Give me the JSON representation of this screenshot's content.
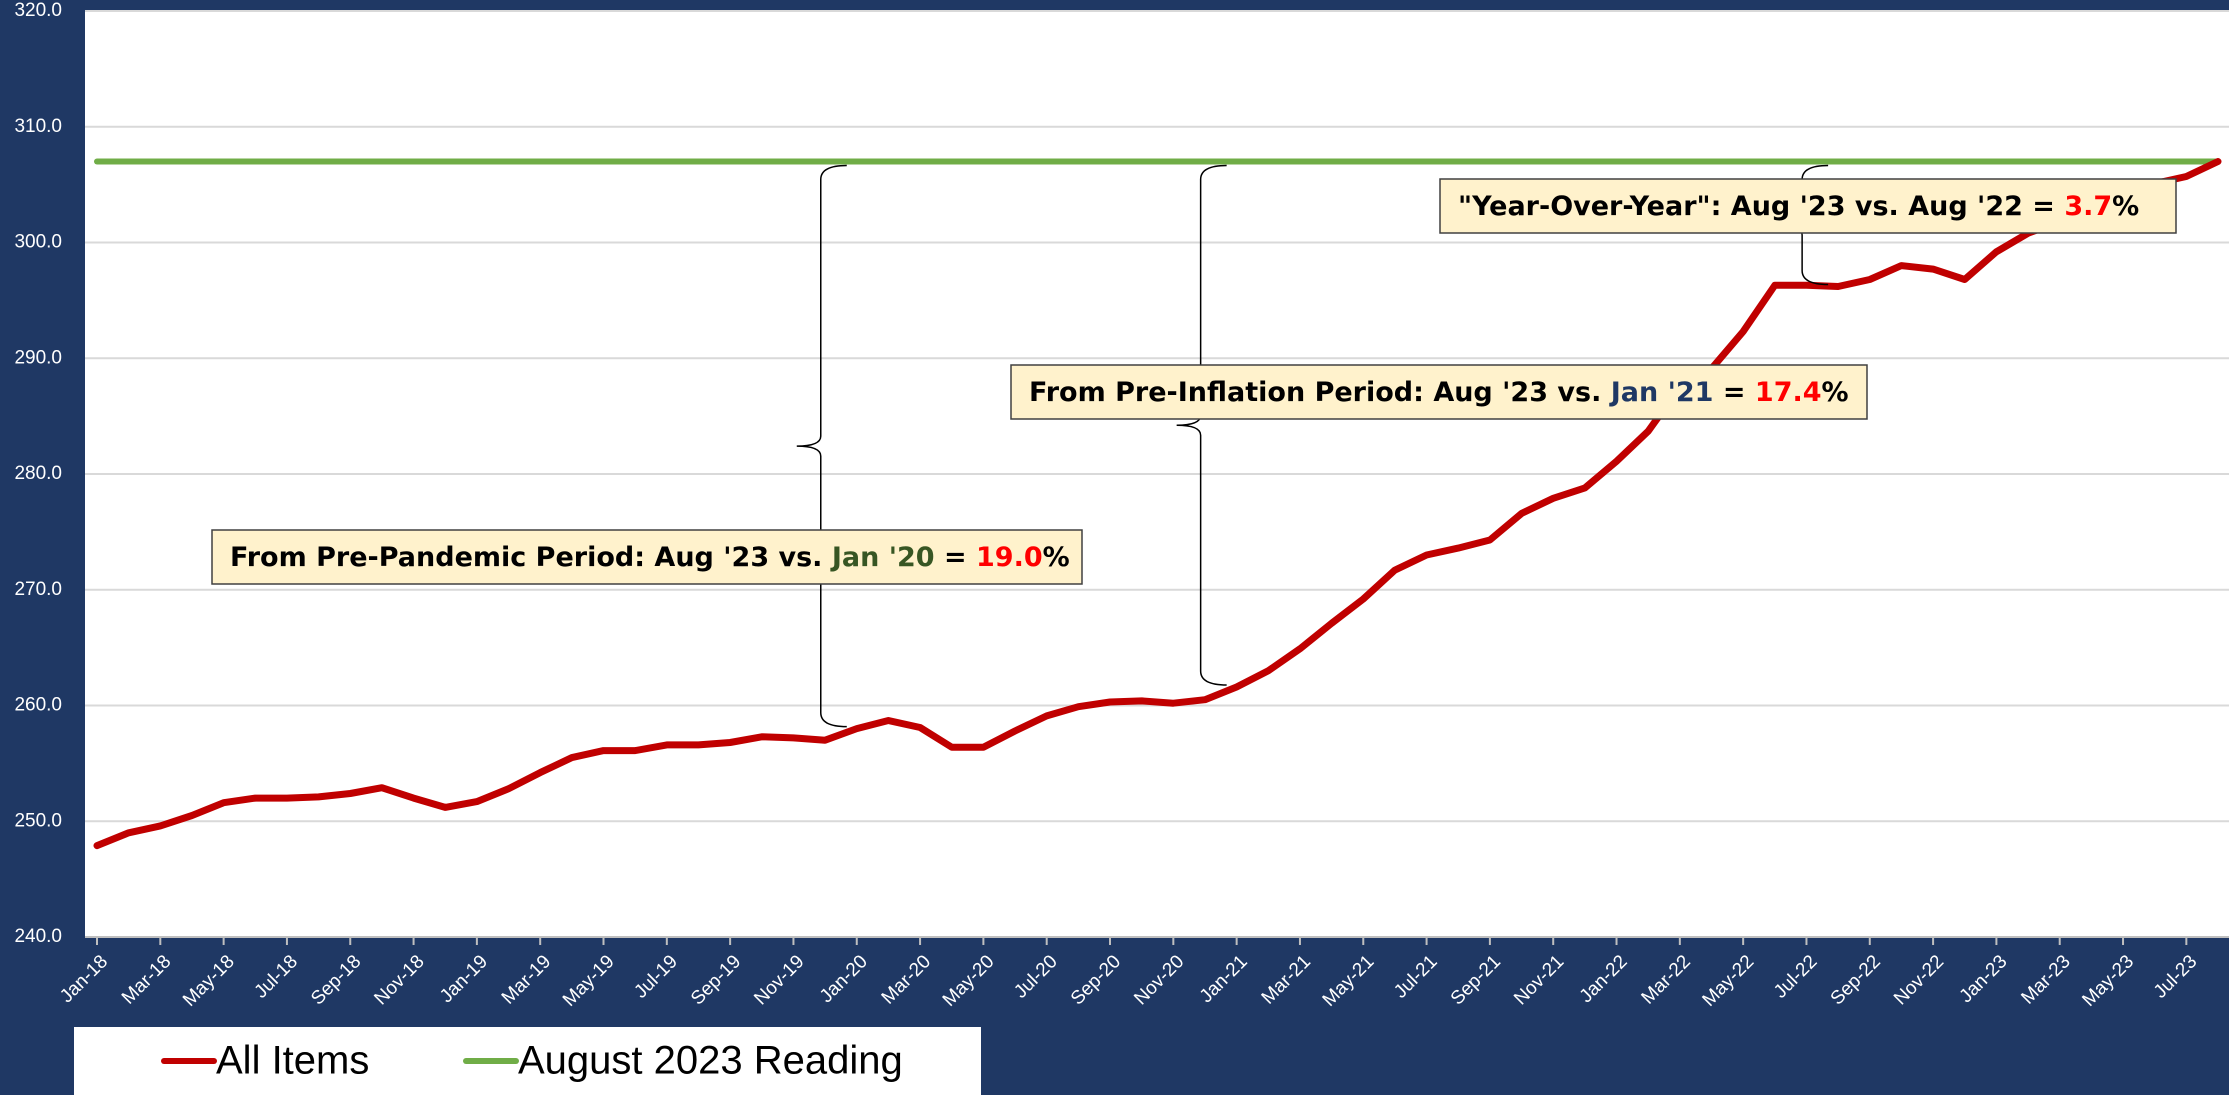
{
  "chart_data": {
    "type": "line",
    "categories": [
      "Jan-18",
      null,
      "Mar-18",
      null,
      "May-18",
      null,
      "Jul-18",
      null,
      "Sep-18",
      null,
      "Nov-18",
      null,
      "Jan-19",
      null,
      "Mar-19",
      null,
      "May-19",
      null,
      "Jul-19",
      null,
      "Sep-19",
      null,
      "Nov-19",
      null,
      "Jan-20",
      null,
      "Mar-20",
      null,
      "May-20",
      null,
      "Jul-20",
      null,
      "Sep-20",
      null,
      "Nov-20",
      null,
      "Jan-21",
      null,
      "Mar-21",
      null,
      "May-21",
      null,
      "Jul-21",
      null,
      "Sep-21",
      null,
      "Nov-21",
      null,
      "Jan-22",
      null,
      "Mar-22",
      null,
      "May-22",
      null,
      "Jul-22",
      null,
      "Sep-22",
      null,
      "Nov-22",
      null,
      "Jan-23",
      null,
      "Mar-23",
      null,
      "May-23",
      null,
      "Jul-23",
      null
    ],
    "series": [
      {
        "name": "All Items",
        "color": "#c00000",
        "values": [
          247.9,
          249.0,
          249.6,
          250.5,
          251.6,
          252.0,
          252.0,
          252.1,
          252.4,
          252.9,
          252.0,
          251.2,
          251.7,
          252.8,
          254.2,
          255.5,
          256.1,
          256.1,
          256.6,
          256.6,
          256.8,
          257.3,
          257.2,
          257.0,
          258.0,
          258.7,
          258.1,
          256.4,
          256.4,
          257.8,
          259.1,
          259.9,
          260.3,
          260.4,
          260.2,
          260.5,
          261.6,
          263.0,
          264.9,
          267.1,
          269.2,
          271.7,
          273.0,
          273.6,
          274.3,
          276.6,
          277.9,
          278.8,
          281.1,
          283.7,
          287.5,
          289.1,
          292.3,
          296.3,
          296.3,
          296.2,
          296.8,
          298.0,
          297.7,
          296.8,
          299.2,
          300.8,
          301.8,
          303.4,
          304.1,
          305.1,
          305.7,
          307.0
        ]
      },
      {
        "name": "August 2023 Reading",
        "color": "#70ad47",
        "values": [
          307.0,
          307.0,
          307.0,
          307.0,
          307.0,
          307.0,
          307.0,
          307.0,
          307.0,
          307.0,
          307.0,
          307.0,
          307.0,
          307.0,
          307.0,
          307.0,
          307.0,
          307.0,
          307.0,
          307.0,
          307.0,
          307.0,
          307.0,
          307.0,
          307.0,
          307.0,
          307.0,
          307.0,
          307.0,
          307.0,
          307.0,
          307.0,
          307.0,
          307.0,
          307.0,
          307.0,
          307.0,
          307.0,
          307.0,
          307.0,
          307.0,
          307.0,
          307.0,
          307.0,
          307.0,
          307.0,
          307.0,
          307.0,
          307.0,
          307.0,
          307.0,
          307.0,
          307.0,
          307.0,
          307.0,
          307.0,
          307.0,
          307.0,
          307.0,
          307.0,
          307.0,
          307.0,
          307.0,
          307.0,
          307.0,
          307.0,
          307.0,
          307.0
        ]
      }
    ],
    "ylim": [
      240,
      320
    ],
    "yticks": [
      {
        "value": 240,
        "label": "240.0"
      },
      {
        "value": 250,
        "label": "250.0"
      },
      {
        "value": 260,
        "label": "260.0"
      },
      {
        "value": 270,
        "label": "270.0"
      },
      {
        "value": 280,
        "label": "280.0"
      },
      {
        "value": 290,
        "label": "290.0"
      },
      {
        "value": 300,
        "label": "300.0"
      },
      {
        "value": 310,
        "label": "310.0"
      },
      {
        "value": 320,
        "label": "320.0"
      }
    ],
    "grid": true,
    "legend": "bottom-left",
    "annotations": [
      {
        "parts": [
          {
            "text": "From Pre-Pandemic Period: Aug '23 vs. ",
            "color": "#000000"
          },
          {
            "text": "Jan '20",
            "color": "#375623"
          },
          {
            "text": " = ",
            "color": "#000000"
          },
          {
            "text": "19.0",
            "color": "#ff0000"
          },
          {
            "text": "%",
            "color": "#000000"
          }
        ]
      },
      {
        "parts": [
          {
            "text": "From Pre-Inflation Period: Aug '23 vs. ",
            "color": "#000000"
          },
          {
            "text": "Jan '21",
            "color": "#1f3864"
          },
          {
            "text": " = ",
            "color": "#000000"
          },
          {
            "text": "17.4",
            "color": "#ff0000"
          },
          {
            "text": "%",
            "color": "#000000"
          }
        ]
      },
      {
        "parts": [
          {
            "text": "\"Year-Over-Year\": Aug '23 vs. Aug '22 = ",
            "color": "#000000"
          },
          {
            "text": "3.7",
            "color": "#ff0000"
          },
          {
            "text": "%",
            "color": "#000000"
          }
        ]
      }
    ]
  }
}
